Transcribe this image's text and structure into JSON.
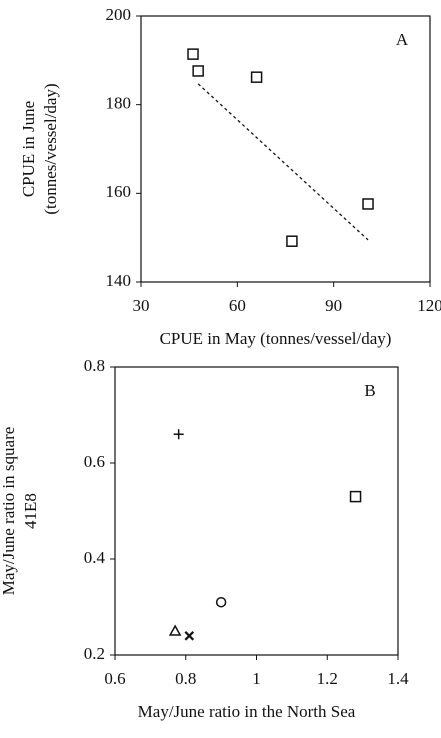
{
  "chart_data": [
    {
      "type": "scatter",
      "annotation": "A",
      "xlabel": "CPUE in May  (tonnes/vessel/day)",
      "ylabel": [
        "CPUE in June",
        "(tonnes/vessel/day)"
      ],
      "xlim": [
        30,
        120
      ],
      "xticks": [
        30,
        60,
        90,
        120
      ],
      "ylim": [
        140,
        200
      ],
      "yticks": [
        140,
        160,
        180,
        200
      ],
      "series": [
        {
          "type": "scatter",
          "marker": "square",
          "color": "#111",
          "x": [
            46.2,
            47.8,
            66,
            77,
            100.7
          ],
          "values": [
            191.4,
            187.6,
            186.2,
            149.2,
            157.6
          ]
        },
        {
          "type": "line",
          "dash": "dashed",
          "color": "#111",
          "x": [
            47.8,
            100.7
          ],
          "values": [
            184.7,
            149.5
          ]
        }
      ]
    },
    {
      "type": "scatter",
      "annotation": "B",
      "xlabel": "May/June ratio in the North Sea",
      "ylabel": [
        "May/June ratio in square",
        "41E8"
      ],
      "xlim": [
        0.6,
        1.4
      ],
      "xticks": [
        0.6,
        0.8,
        1,
        1.2,
        1.4
      ],
      "ylim": [
        0.2,
        0.8
      ],
      "yticks": [
        0.2,
        0.4,
        0.6,
        0.8
      ],
      "series": [
        {
          "type": "scatter",
          "color": "#111",
          "markers": [
            "plus",
            "square",
            "circle",
            "triangle",
            "x"
          ],
          "x": [
            0.78,
            1.28,
            0.9,
            0.77,
            0.81
          ],
          "values": [
            0.66,
            0.53,
            0.31,
            0.25,
            0.24
          ]
        }
      ]
    }
  ]
}
